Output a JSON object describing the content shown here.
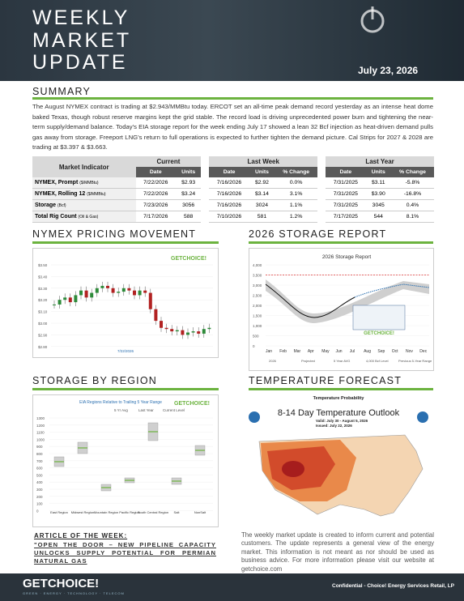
{
  "header": {
    "title_lines": [
      "WEEKLY",
      "MARKET",
      "UPDATE"
    ],
    "date": "July 23, 2026"
  },
  "summary": {
    "heading": "SUMMARY",
    "text": "The August NYMEX contract is trading at $2.943/MMBtu today. ERCOT set an all-time peak demand record yesterday as an intense heat dome baked Texas, though robust reserve margins kept the grid stable. The record load is driving unprecedented power burn and tightening the near-term supply/demand balance. Today's EIA storage report for the week ending July 17 showed a lean 32 Bcf injection as heat-driven demand pulls gas away from storage. Freeport LNG's return to full operations is expected to further tighten the demand picture. Cal Strips for 2027 & 2028 are trading at $3.397 & $3.663."
  },
  "table": {
    "indicator_header": "Market Indicator",
    "groups": [
      "Current",
      "Last Week",
      "Last Year"
    ],
    "subheaders": {
      "date": "Date",
      "units": "Units",
      "change": "% Change"
    },
    "rows": [
      {
        "name": "NYMEX, Prompt",
        "unit": "($/MMBtu)",
        "current": [
          "7/22/2026",
          "$2.93"
        ],
        "last_week": [
          "7/16/2026",
          "$2.92",
          "0.0%"
        ],
        "last_year": [
          "7/31/2025",
          "$3.11",
          "-5.8%"
        ]
      },
      {
        "name": "NYMEX, Rolling 12",
        "unit": "($/MMBtu)",
        "current": [
          "7/22/2026",
          "$3.24"
        ],
        "last_week": [
          "7/16/2026",
          "$3.14",
          "3.1%"
        ],
        "last_year": [
          "7/31/2025",
          "$3.90",
          "-16.8%"
        ]
      },
      {
        "name": "Storage",
        "unit": "(Bcf)",
        "current": [
          "7/23/2026",
          "3056"
        ],
        "last_week": [
          "7/16/2026",
          "3024",
          "1.1%"
        ],
        "last_year": [
          "7/31/2025",
          "3045",
          "0.4%"
        ]
      },
      {
        "name": "Total Rig Count",
        "unit": "(Oil & Gas)",
        "current": [
          "7/17/2026",
          "588"
        ],
        "last_week": [
          "7/10/2026",
          "581",
          "1.2%"
        ],
        "last_year": [
          "7/17/2025",
          "544",
          "8.1%"
        ]
      }
    ]
  },
  "nymex": {
    "heading": "NYMEX PRICING MOVEMENT",
    "brand": "GETCHOICE!",
    "yticks": [
      "$3.50",
      "$3.40",
      "$3.30",
      "$3.20",
      "$3.10",
      "$3.00",
      "$2.90",
      "$2.80"
    ],
    "footer_date": "7/22/2026"
  },
  "storage": {
    "heading": "2026 STORAGE REPORT",
    "title": "2026 Storage Report",
    "yticks": [
      "4,000",
      "3,500",
      "3,000",
      "2,500",
      "2,000",
      "1,500",
      "1,000",
      "500",
      "0"
    ],
    "months": [
      "Jan",
      "Feb",
      "Mar",
      "Apr",
      "May",
      "Jun",
      "Jul",
      "Aug",
      "Sep",
      "Oct",
      "Nov",
      "Dec"
    ],
    "legend": [
      "2026",
      "Projected",
      "5 Year AVG",
      "4,000 Bcf Level",
      "Previous 5-Year Range"
    ],
    "brand": "GETCHOICE!"
  },
  "region": {
    "heading": "STORAGE BY REGION",
    "title": "EIA Regions Relative to Trailing 5 Year Range",
    "brand": "GETCHOICE!",
    "legend": [
      "5 Yr Avg",
      "Last Year",
      "Current Level"
    ],
    "yticks": [
      "1300",
      "1200",
      "1100",
      "1000",
      "900",
      "800",
      "700",
      "600",
      "500",
      "400",
      "300",
      "200",
      "100",
      "0"
    ],
    "categories": [
      "East Region",
      "Midwest Region",
      "Mountain Region",
      "Pacific Region",
      "South Central Region",
      "Salt",
      "NonSalt"
    ]
  },
  "temperature": {
    "heading": "TEMPERATURE FORECAST",
    "map_header": "Temperature Probability",
    "map_title": "8-14 Day Temperature Outlook",
    "valid": "Valid: July 30 - August 5, 2026",
    "issued": "Issued: July 22, 2026"
  },
  "article": {
    "label": "ARTICLE OF THE WEEK:",
    "title": "\"OPEN THE DOOR – NEW PIPELINE CAPACITY UNLOCKS SUPPLY POTENTIAL FOR PERMIAN NATURAL GAS"
  },
  "disclaimer": "The weekly market update is created to inform current and potential customers. The update represents a general view of the energy market. This information is not meant as nor should be used as business advice. For more information please visit our website at getchoice.com",
  "footer": {
    "logo": "GETCHOICE!",
    "tagline": "GREEN · ENERGY · TECHNOLOGY · TELECOM",
    "confidential": "Confidential - Choice! Energy Services Retail, LP"
  }
}
